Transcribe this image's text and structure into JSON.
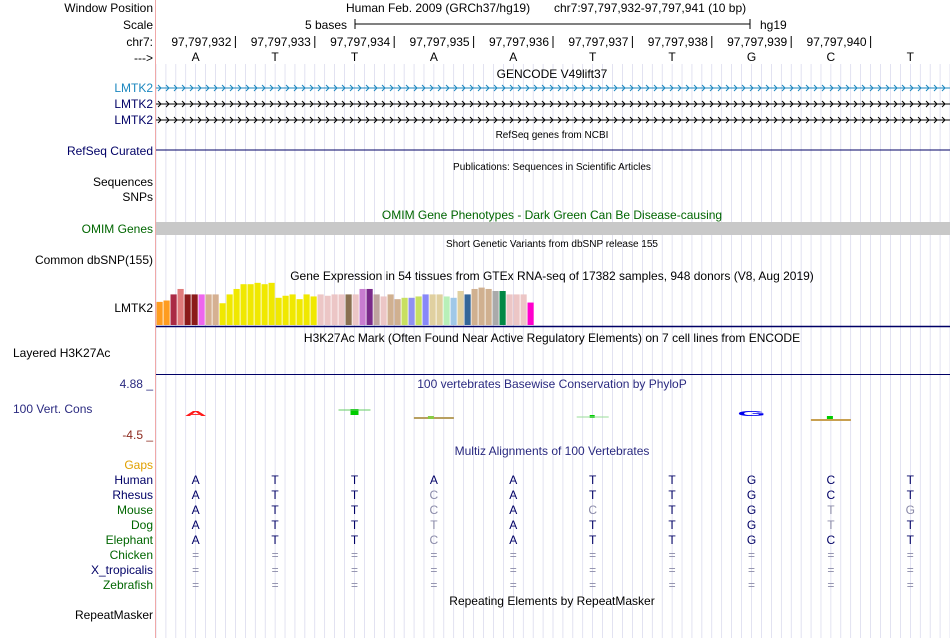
{
  "header": {
    "window_position_label": "Window Position",
    "scale_label": "Scale",
    "chr_label": "chr7:",
    "strand_label": "--->",
    "assembly": "Human Feb. 2009 (GRCh37/hg19)",
    "position": "chr7:97,797,932-97,797,941 (10 bp)",
    "scale_text": "5 bases",
    "db": "hg19",
    "coords": [
      "97,797,932",
      "97,797,933",
      "97,797,934",
      "97,797,935",
      "97,797,936",
      "97,797,937",
      "97,797,938",
      "97,797,939",
      "97,797,940"
    ],
    "bases": [
      "A",
      "T",
      "T",
      "A",
      "A",
      "T",
      "T",
      "G",
      "C",
      "T"
    ]
  },
  "gencode": {
    "title": "GENCODE V49lift37",
    "transcripts": [
      "LMTK2",
      "LMTK2",
      "LMTK2"
    ]
  },
  "refseq": {
    "title": "RefSeq genes from NCBI",
    "label": "RefSeq Curated"
  },
  "publications": {
    "title": "Publications: Sequences in Scientific Articles",
    "labels": [
      "Sequences",
      "SNPs"
    ]
  },
  "omim": {
    "title": "OMIM Gene Phenotypes - Dark Green Can Be Disease-causing",
    "label": "OMIM Genes"
  },
  "dbsnp": {
    "title": "Short Genetic Variants from dbSNP release 155",
    "label": "Common dbSNP(155)"
  },
  "gtex": {
    "title": "Gene Expression in 54 tissues from GTEx RNA-seq of 17382 samples, 948 donors (V8, Aug 2019)",
    "label": "LMTK2"
  },
  "h3k27ac": {
    "title": "H3K27Ac Mark (Often Found Near Active Regulatory Elements) on 7 cell lines from ENCODE",
    "label": "Layered H3K27Ac"
  },
  "conservation": {
    "title": "100 vertebrates Basewise Conservation by PhyloP",
    "label": "100 Vert. Cons",
    "max": "4.88 _",
    "min": "-4.5 _",
    "logo_letters": [
      "A",
      "G"
    ]
  },
  "multiz": {
    "title": "Multiz Alignments of 100 Vertebrates",
    "gaps_label": "Gaps",
    "species": [
      {
        "name": "Human",
        "color": "#000066",
        "seq": [
          "A",
          "T",
          "T",
          "A",
          "A",
          "T",
          "T",
          "G",
          "C",
          "T"
        ],
        "dim": [
          0,
          0,
          0,
          0,
          0,
          0,
          0,
          0,
          0,
          0
        ]
      },
      {
        "name": "Rhesus",
        "color": "#000066",
        "seq": [
          "A",
          "T",
          "T",
          "C",
          "A",
          "T",
          "T",
          "G",
          "C",
          "T"
        ],
        "dim": [
          0,
          0,
          0,
          1,
          0,
          0,
          0,
          0,
          0,
          0
        ]
      },
      {
        "name": "Mouse",
        "color": "#006600",
        "seq": [
          "A",
          "T",
          "T",
          "C",
          "A",
          "C",
          "T",
          "G",
          "T",
          "G"
        ],
        "dim": [
          0,
          0,
          0,
          1,
          0,
          1,
          0,
          0,
          1,
          1
        ]
      },
      {
        "name": "Dog",
        "color": "#006600",
        "seq": [
          "A",
          "T",
          "T",
          "T",
          "A",
          "T",
          "T",
          "G",
          "T",
          "T"
        ],
        "dim": [
          0,
          0,
          0,
          1,
          0,
          0,
          0,
          0,
          1,
          0
        ]
      },
      {
        "name": "Elephant",
        "color": "#006600",
        "seq": [
          "A",
          "T",
          "T",
          "C",
          "A",
          "T",
          "T",
          "G",
          "C",
          "T"
        ],
        "dim": [
          0,
          0,
          0,
          1,
          0,
          0,
          0,
          0,
          0,
          0
        ]
      },
      {
        "name": "Chicken",
        "color": "#006600",
        "seq": [
          "=",
          "=",
          "=",
          "=",
          "=",
          "=",
          "=",
          "=",
          "=",
          "="
        ],
        "dim": [
          1,
          1,
          1,
          1,
          1,
          1,
          1,
          1,
          1,
          1
        ]
      },
      {
        "name": "X_tropicalis",
        "color": "#000066",
        "seq": [
          "=",
          "=",
          "=",
          "=",
          "=",
          "=",
          "=",
          "=",
          "=",
          "="
        ],
        "dim": [
          1,
          1,
          1,
          1,
          1,
          1,
          1,
          1,
          1,
          1
        ]
      },
      {
        "name": "Zebrafish",
        "color": "#006600",
        "seq": [
          "=",
          "=",
          "=",
          "=",
          "=",
          "=",
          "=",
          "=",
          "=",
          "="
        ],
        "dim": [
          1,
          1,
          1,
          1,
          1,
          1,
          1,
          1,
          1,
          1
        ]
      }
    ]
  },
  "repeatmasker": {
    "title": "Repeating Elements by RepeatMasker",
    "label": "RepeatMasker"
  },
  "colors": {
    "gencode": "#1b87bf",
    "navy": "#000066",
    "omim_green": "#006600",
    "gaps": "#e0a000",
    "cons_max": "#2a2a80",
    "cons_min": "#8c2a1e",
    "grid": "#cfcfe8"
  },
  "chart_data": {
    "type": "bar",
    "series": [
      {
        "values": [
          0.34,
          0.36,
          0.45,
          0.53,
          0.45,
          0.45,
          0.45,
          0.45,
          0.45,
          0.32,
          0.45,
          0.53,
          0.6,
          0.6,
          0.62,
          0.6,
          0.62,
          0.4,
          0.43,
          0.45,
          0.38,
          0.45,
          0.42,
          0.45,
          0.43,
          0.45,
          0.45,
          0.45,
          0.45,
          0.53,
          0.53,
          0.45,
          0.42,
          0.45,
          0.38,
          0.4,
          0.4,
          0.42,
          0.45,
          0.45,
          0.45,
          0.42,
          0.4,
          0.5,
          0.45,
          0.53,
          0.55,
          0.53,
          0.5,
          0.5,
          0.45,
          0.45,
          0.45,
          0.33
        ]
      }
    ],
    "colors": [
      "#ff9c1f",
      "#ff9c1f",
      "#aa2a45",
      "#e07a7a",
      "#8b1a1a",
      "#8b1a1a",
      "#ee66ee",
      "#d5b092",
      "#d5b092",
      "#f0e800",
      "#f0e800",
      "#f0e800",
      "#f0e800",
      "#f0e800",
      "#f0e800",
      "#f0e800",
      "#f0e800",
      "#f0e800",
      "#f0e800",
      "#f0e800",
      "#f0e800",
      "#f0e800",
      "#f0e800",
      "#ecc6c6",
      "#ecc6c6",
      "#ecc6c6",
      "#ecc6c6",
      "#8a7050",
      "#ecc6c6",
      "#c87cd0",
      "#7a2a8a",
      "#c0a4a0",
      "#ecc6c6",
      "#d0b090",
      "#d0b090",
      "#c8e060",
      "#9090f0",
      "#c8e060",
      "#8888f8",
      "#e0d0a0",
      "#e0d0a0",
      "#b8f0b8",
      "#a0c8e8",
      "#e0d0a0",
      "#336699",
      "#d0b090",
      "#d0b090",
      "#d0b090",
      "#aaaaaa",
      "#008844",
      "#ecc6c6",
      "#ecc6c6",
      "#ecc6c6",
      "#ff00cc"
    ]
  }
}
